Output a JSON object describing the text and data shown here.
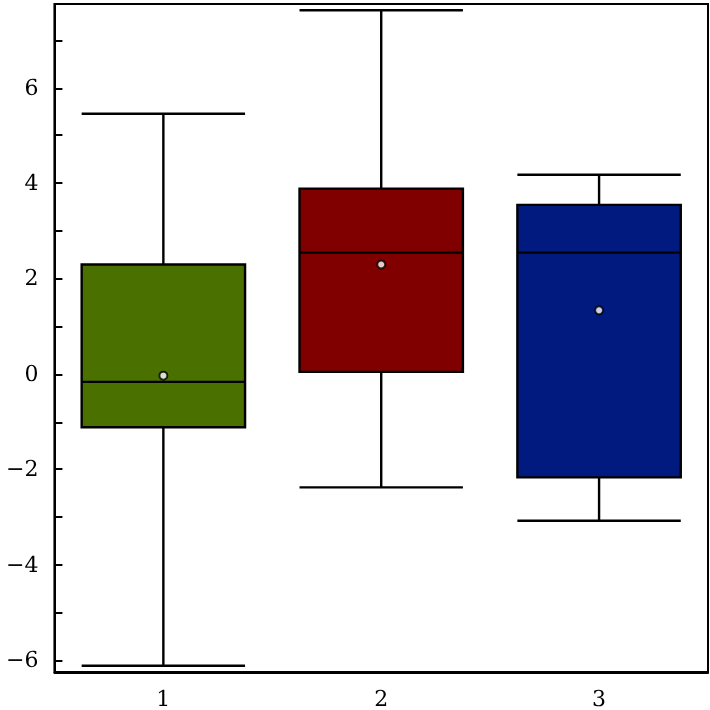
{
  "chart_data": {
    "type": "box",
    "categories": [
      "1",
      "2",
      "3"
    ],
    "boxes": [
      {
        "low": -6.12,
        "q1": -1.12,
        "median": -0.17,
        "q3": 2.29,
        "high": 5.45,
        "mean": -0.04
      },
      {
        "low": -2.38,
        "q1": 0.04,
        "median": 2.54,
        "q3": 3.88,
        "high": 7.62,
        "mean": 2.29
      },
      {
        "low": -3.08,
        "q1": -2.17,
        "median": 2.54,
        "q3": 3.54,
        "high": 4.17,
        "mean": 1.33
      }
    ],
    "colors": [
      "#4a7000",
      "#800000",
      "#001a80"
    ],
    "ylim": [
      -6.25,
      7.75
    ],
    "yticks": [
      {
        "value": -6,
        "label": "−6"
      },
      {
        "value": -5,
        "label": null
      },
      {
        "value": -4,
        "label": "−4"
      },
      {
        "value": -3,
        "label": null
      },
      {
        "value": -2,
        "label": "−2"
      },
      {
        "value": -1,
        "label": null
      },
      {
        "value": 0,
        "label": "0"
      },
      {
        "value": 1,
        "label": null
      },
      {
        "value": 2,
        "label": "2"
      },
      {
        "value": 3,
        "label": null
      },
      {
        "value": 4,
        "label": "4"
      },
      {
        "value": 5,
        "label": null
      },
      {
        "value": 6,
        "label": "6"
      },
      {
        "value": 7,
        "label": null
      }
    ],
    "grid": false
  }
}
